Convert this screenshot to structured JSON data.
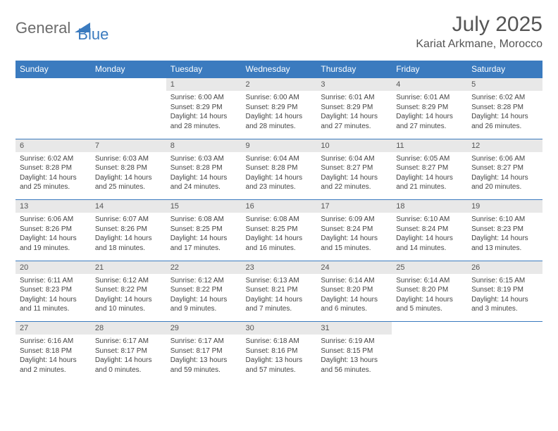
{
  "brand": {
    "part1": "General",
    "part2": "Blue"
  },
  "title": "July 2025",
  "location": "Kariat Arkmane, Morocco",
  "colors": {
    "header_bg": "#3b7bbf",
    "header_text": "#ffffff",
    "daynum_bg": "#e8e8e8",
    "page_bg": "#ffffff",
    "text": "#444444",
    "logo_gray": "#6b6b6b",
    "logo_blue": "#3b7bbf"
  },
  "weekdays": [
    "Sunday",
    "Monday",
    "Tuesday",
    "Wednesday",
    "Thursday",
    "Friday",
    "Saturday"
  ],
  "weeks": [
    [
      null,
      null,
      {
        "n": "1",
        "sr": "Sunrise: 6:00 AM",
        "ss": "Sunset: 8:29 PM",
        "dl": "Daylight: 14 hours and 28 minutes."
      },
      {
        "n": "2",
        "sr": "Sunrise: 6:00 AM",
        "ss": "Sunset: 8:29 PM",
        "dl": "Daylight: 14 hours and 28 minutes."
      },
      {
        "n": "3",
        "sr": "Sunrise: 6:01 AM",
        "ss": "Sunset: 8:29 PM",
        "dl": "Daylight: 14 hours and 27 minutes."
      },
      {
        "n": "4",
        "sr": "Sunrise: 6:01 AM",
        "ss": "Sunset: 8:29 PM",
        "dl": "Daylight: 14 hours and 27 minutes."
      },
      {
        "n": "5",
        "sr": "Sunrise: 6:02 AM",
        "ss": "Sunset: 8:28 PM",
        "dl": "Daylight: 14 hours and 26 minutes."
      }
    ],
    [
      {
        "n": "6",
        "sr": "Sunrise: 6:02 AM",
        "ss": "Sunset: 8:28 PM",
        "dl": "Daylight: 14 hours and 25 minutes."
      },
      {
        "n": "7",
        "sr": "Sunrise: 6:03 AM",
        "ss": "Sunset: 8:28 PM",
        "dl": "Daylight: 14 hours and 25 minutes."
      },
      {
        "n": "8",
        "sr": "Sunrise: 6:03 AM",
        "ss": "Sunset: 8:28 PM",
        "dl": "Daylight: 14 hours and 24 minutes."
      },
      {
        "n": "9",
        "sr": "Sunrise: 6:04 AM",
        "ss": "Sunset: 8:28 PM",
        "dl": "Daylight: 14 hours and 23 minutes."
      },
      {
        "n": "10",
        "sr": "Sunrise: 6:04 AM",
        "ss": "Sunset: 8:27 PM",
        "dl": "Daylight: 14 hours and 22 minutes."
      },
      {
        "n": "11",
        "sr": "Sunrise: 6:05 AM",
        "ss": "Sunset: 8:27 PM",
        "dl": "Daylight: 14 hours and 21 minutes."
      },
      {
        "n": "12",
        "sr": "Sunrise: 6:06 AM",
        "ss": "Sunset: 8:27 PM",
        "dl": "Daylight: 14 hours and 20 minutes."
      }
    ],
    [
      {
        "n": "13",
        "sr": "Sunrise: 6:06 AM",
        "ss": "Sunset: 8:26 PM",
        "dl": "Daylight: 14 hours and 19 minutes."
      },
      {
        "n": "14",
        "sr": "Sunrise: 6:07 AM",
        "ss": "Sunset: 8:26 PM",
        "dl": "Daylight: 14 hours and 18 minutes."
      },
      {
        "n": "15",
        "sr": "Sunrise: 6:08 AM",
        "ss": "Sunset: 8:25 PM",
        "dl": "Daylight: 14 hours and 17 minutes."
      },
      {
        "n": "16",
        "sr": "Sunrise: 6:08 AM",
        "ss": "Sunset: 8:25 PM",
        "dl": "Daylight: 14 hours and 16 minutes."
      },
      {
        "n": "17",
        "sr": "Sunrise: 6:09 AM",
        "ss": "Sunset: 8:24 PM",
        "dl": "Daylight: 14 hours and 15 minutes."
      },
      {
        "n": "18",
        "sr": "Sunrise: 6:10 AM",
        "ss": "Sunset: 8:24 PM",
        "dl": "Daylight: 14 hours and 14 minutes."
      },
      {
        "n": "19",
        "sr": "Sunrise: 6:10 AM",
        "ss": "Sunset: 8:23 PM",
        "dl": "Daylight: 14 hours and 13 minutes."
      }
    ],
    [
      {
        "n": "20",
        "sr": "Sunrise: 6:11 AM",
        "ss": "Sunset: 8:23 PM",
        "dl": "Daylight: 14 hours and 11 minutes."
      },
      {
        "n": "21",
        "sr": "Sunrise: 6:12 AM",
        "ss": "Sunset: 8:22 PM",
        "dl": "Daylight: 14 hours and 10 minutes."
      },
      {
        "n": "22",
        "sr": "Sunrise: 6:12 AM",
        "ss": "Sunset: 8:22 PM",
        "dl": "Daylight: 14 hours and 9 minutes."
      },
      {
        "n": "23",
        "sr": "Sunrise: 6:13 AM",
        "ss": "Sunset: 8:21 PM",
        "dl": "Daylight: 14 hours and 7 minutes."
      },
      {
        "n": "24",
        "sr": "Sunrise: 6:14 AM",
        "ss": "Sunset: 8:20 PM",
        "dl": "Daylight: 14 hours and 6 minutes."
      },
      {
        "n": "25",
        "sr": "Sunrise: 6:14 AM",
        "ss": "Sunset: 8:20 PM",
        "dl": "Daylight: 14 hours and 5 minutes."
      },
      {
        "n": "26",
        "sr": "Sunrise: 6:15 AM",
        "ss": "Sunset: 8:19 PM",
        "dl": "Daylight: 14 hours and 3 minutes."
      }
    ],
    [
      {
        "n": "27",
        "sr": "Sunrise: 6:16 AM",
        "ss": "Sunset: 8:18 PM",
        "dl": "Daylight: 14 hours and 2 minutes."
      },
      {
        "n": "28",
        "sr": "Sunrise: 6:17 AM",
        "ss": "Sunset: 8:17 PM",
        "dl": "Daylight: 14 hours and 0 minutes."
      },
      {
        "n": "29",
        "sr": "Sunrise: 6:17 AM",
        "ss": "Sunset: 8:17 PM",
        "dl": "Daylight: 13 hours and 59 minutes."
      },
      {
        "n": "30",
        "sr": "Sunrise: 6:18 AM",
        "ss": "Sunset: 8:16 PM",
        "dl": "Daylight: 13 hours and 57 minutes."
      },
      {
        "n": "31",
        "sr": "Sunrise: 6:19 AM",
        "ss": "Sunset: 8:15 PM",
        "dl": "Daylight: 13 hours and 56 minutes."
      },
      null,
      null
    ]
  ]
}
